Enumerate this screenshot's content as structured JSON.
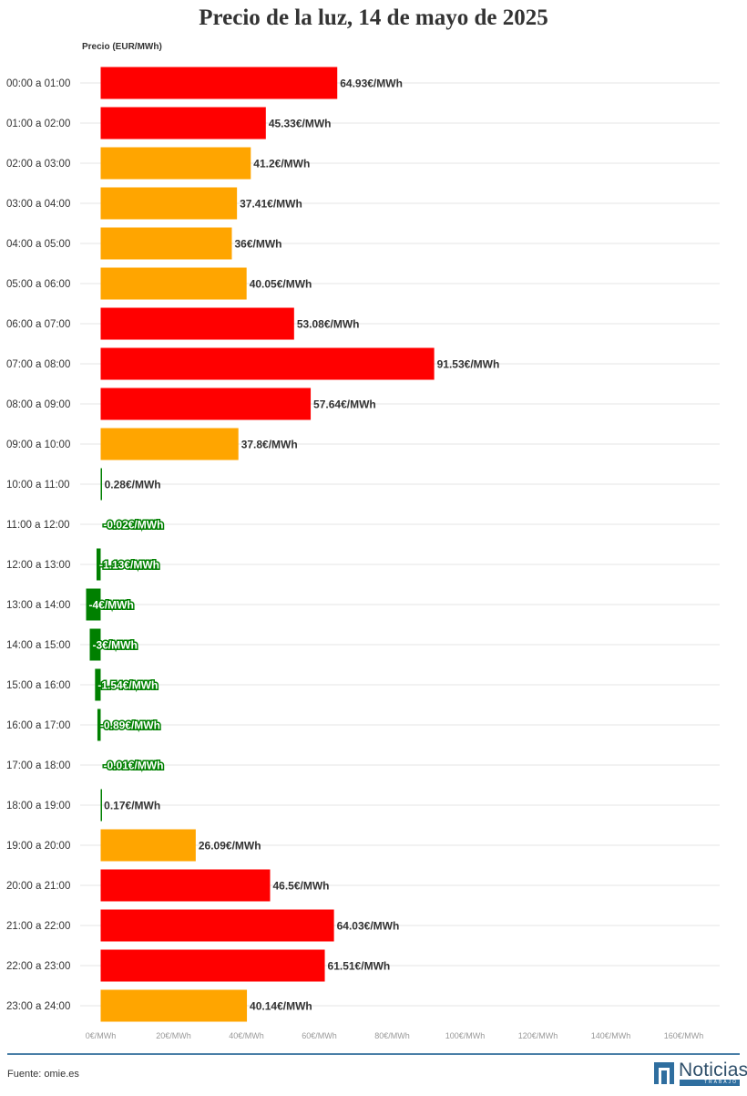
{
  "chart_data": {
    "type": "bar",
    "orientation": "horizontal",
    "title": "Precio de la luz, 14 de mayo de 2025",
    "value_axis_label": "Precio (EUR/MWh)",
    "value_suffix": "€/MWh",
    "xlim": [
      0,
      160
    ],
    "x_ticks": [
      0,
      20,
      40,
      60,
      80,
      100,
      120,
      140,
      160
    ],
    "x_tick_labels": [
      "0€/MWh",
      "20€/MWh",
      "40€/MWh",
      "60€/MWh",
      "80€/MWh",
      "100€/MWh",
      "120€/MWh",
      "140€/MWh",
      "160€/MWh"
    ],
    "grid": true,
    "categories": [
      "00:00 a 01:00",
      "01:00 a 02:00",
      "02:00 a 03:00",
      "03:00 a 04:00",
      "04:00 a 05:00",
      "05:00 a 06:00",
      "06:00 a 07:00",
      "07:00 a 08:00",
      "08:00 a 09:00",
      "09:00 a 10:00",
      "10:00 a 11:00",
      "11:00 a 12:00",
      "12:00 a 13:00",
      "13:00 a 14:00",
      "14:00 a 15:00",
      "15:00 a 16:00",
      "16:00 a 17:00",
      "17:00 a 18:00",
      "18:00 a 19:00",
      "19:00 a 20:00",
      "20:00 a 21:00",
      "21:00 a 22:00",
      "22:00 a 23:00",
      "23:00 a 24:00"
    ],
    "values": [
      64.93,
      45.33,
      41.2,
      37.41,
      36,
      40.05,
      53.08,
      91.53,
      57.64,
      37.8,
      0.28,
      -0.02,
      -1.13,
      -4,
      -3,
      -1.54,
      -0.89,
      -0.01,
      0.17,
      26.09,
      46.5,
      64.03,
      61.51,
      40.14
    ],
    "value_labels": [
      "64.93€/MWh",
      "45.33€/MWh",
      "41.2€/MWh",
      "37.41€/MWh",
      "36€/MWh",
      "40.05€/MWh",
      "53.08€/MWh",
      "91.53€/MWh",
      "57.64€/MWh",
      "37.8€/MWh",
      "0.28€/MWh",
      "-0.02€/MWh",
      "-1.13€/MWh",
      "-4€/MWh",
      "-3€/MWh",
      "-1.54€/MWh",
      "-0.89€/MWh",
      "-0.01€/MWh",
      "0.17€/MWh",
      "26.09€/MWh",
      "46.5€/MWh",
      "64.03€/MWh",
      "61.51€/MWh",
      "40.14€/MWh"
    ],
    "bar_levels": [
      "high",
      "high",
      "medium",
      "medium",
      "medium",
      "medium",
      "high",
      "high",
      "high",
      "medium",
      "low",
      "low",
      "low",
      "low",
      "low",
      "low",
      "low",
      "low",
      "low",
      "medium",
      "high",
      "high",
      "high",
      "medium"
    ],
    "colors": {
      "high": "#ff0000",
      "medium": "#ffa500",
      "low": "#008000",
      "grid": "#e6e6e6",
      "label_dark": "#333333",
      "label_low_fill": "#ffffff"
    }
  },
  "footer": {
    "source": "Fuente: omie.es",
    "logo_word": "Noticias",
    "logo_sub": "TRABAJO",
    "line_color": "#4a7fa7"
  }
}
